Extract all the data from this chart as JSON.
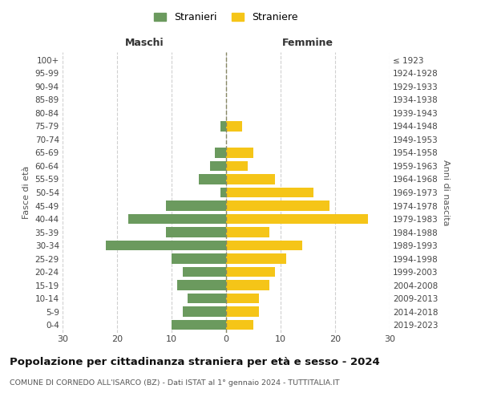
{
  "age_groups": [
    "0-4",
    "5-9",
    "10-14",
    "15-19",
    "20-24",
    "25-29",
    "30-34",
    "35-39",
    "40-44",
    "45-49",
    "50-54",
    "55-59",
    "60-64",
    "65-69",
    "70-74",
    "75-79",
    "80-84",
    "85-89",
    "90-94",
    "95-99",
    "100+"
  ],
  "birth_years": [
    "2019-2023",
    "2014-2018",
    "2009-2013",
    "2004-2008",
    "1999-2003",
    "1994-1998",
    "1989-1993",
    "1984-1988",
    "1979-1983",
    "1974-1978",
    "1969-1973",
    "1964-1968",
    "1959-1963",
    "1954-1958",
    "1949-1953",
    "1944-1948",
    "1939-1943",
    "1934-1938",
    "1929-1933",
    "1924-1928",
    "≤ 1923"
  ],
  "maschi": [
    10,
    8,
    7,
    9,
    8,
    10,
    22,
    11,
    18,
    11,
    1,
    5,
    3,
    2,
    0,
    1,
    0,
    0,
    0,
    0,
    0
  ],
  "femmine": [
    5,
    6,
    6,
    8,
    9,
    11,
    14,
    8,
    26,
    19,
    16,
    9,
    4,
    5,
    0,
    3,
    0,
    0,
    0,
    0,
    0
  ],
  "male_color": "#6b9a5e",
  "female_color": "#f5c518",
  "title": "Popolazione per cittadinanza straniera per età e sesso - 2024",
  "subtitle": "COMUNE DI CORNEDO ALL'ISARCO (BZ) - Dati ISTAT al 1° gennaio 2024 - TUTTITALIA.IT",
  "xlabel_left": "Maschi",
  "xlabel_right": "Femmine",
  "ylabel_left": "Fasce di età",
  "ylabel_right": "Anni di nascita",
  "legend_male": "Stranieri",
  "legend_female": "Straniere",
  "xlim": 30,
  "background_color": "#ffffff",
  "grid_color": "#d0d0d0"
}
